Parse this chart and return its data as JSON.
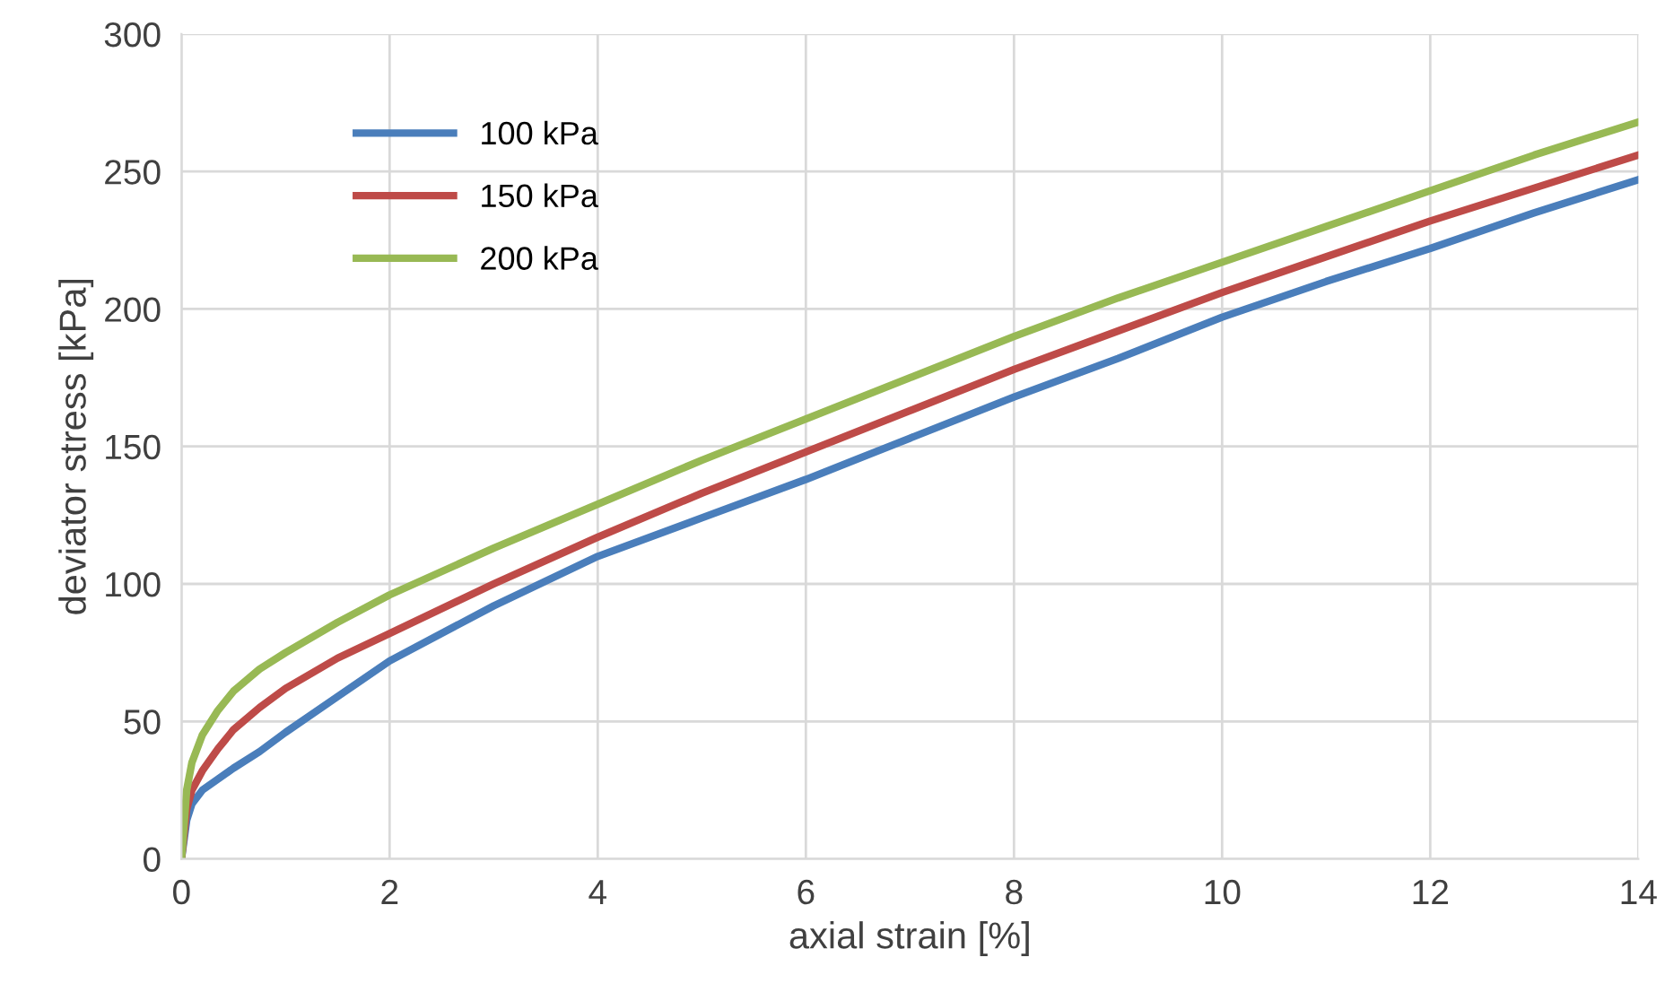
{
  "chart_data": {
    "type": "line",
    "xlabel": "axial strain [%]",
    "ylabel": "deviator stress [kPa]",
    "xlim": [
      0,
      14
    ],
    "xticks": [
      0,
      2,
      4,
      6,
      8,
      10,
      12,
      14
    ],
    "ylim": [
      0,
      300
    ],
    "yticks": [
      0,
      50,
      100,
      150,
      200,
      250,
      300
    ],
    "grid": true,
    "legend": "top left",
    "marker": "none",
    "line_style": "solid",
    "x": [
      0,
      0.05,
      0.1,
      0.2,
      0.35,
      0.5,
      0.75,
      1,
      1.5,
      2,
      3,
      4,
      5,
      6,
      7,
      8,
      9,
      10,
      11,
      12,
      13,
      14
    ],
    "series": [
      {
        "name": "100 kPa",
        "color": "#4a7ebb",
        "values": [
          0,
          14,
          20,
          25,
          29,
          33,
          39,
          46,
          59,
          72,
          92,
          110,
          124,
          138,
          153,
          168,
          182,
          197,
          210,
          222,
          235,
          247
        ]
      },
      {
        "name": "150 kPa",
        "color": "#be4b48",
        "values": [
          0,
          18,
          25,
          32,
          40,
          47,
          55,
          62,
          73,
          82,
          100,
          117,
          133,
          148,
          163,
          178,
          192,
          206,
          219,
          232,
          244,
          256
        ]
      },
      {
        "name": "200 kPa",
        "color": "#98b954",
        "values": [
          0,
          25,
          35,
          45,
          54,
          61,
          69,
          75,
          86,
          96,
          113,
          129,
          145,
          160,
          175,
          190,
          204,
          217,
          230,
          243,
          256,
          268
        ]
      }
    ]
  }
}
